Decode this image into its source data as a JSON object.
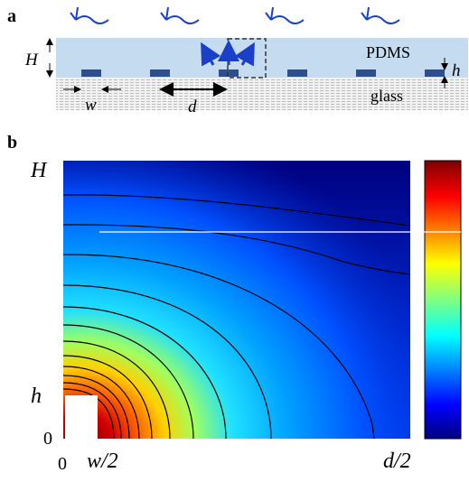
{
  "panel_a": {
    "label": "a",
    "height_label": "H",
    "top_material": "PDMS",
    "thickness_label": "h",
    "bottom_material": "glass",
    "width_label": "w",
    "spacing_label": "d"
  },
  "panel_b": {
    "label": "b",
    "y_top_label": "H",
    "y_mid_label": "h",
    "y_zero_label": "0",
    "x_zero_label": "0",
    "x_mid_label": "w/2",
    "x_end_label": "d/2"
  }
}
